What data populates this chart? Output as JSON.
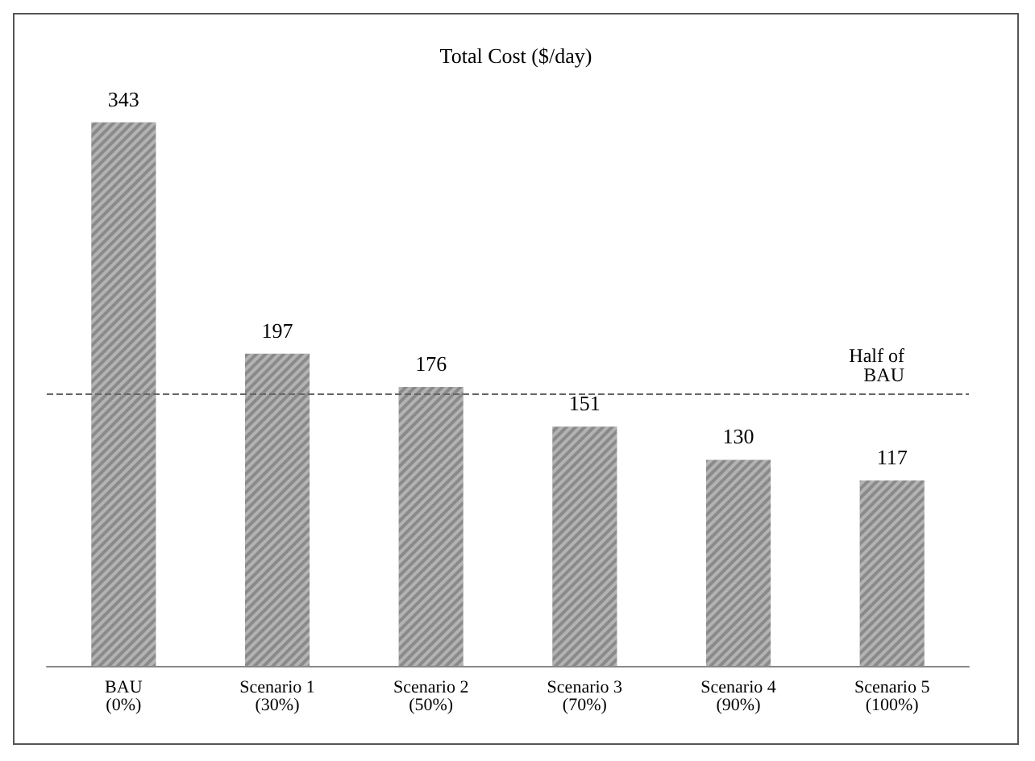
{
  "chart_data": {
    "type": "bar",
    "title": "Total Cost ($/day)",
    "categories": [
      "BAU (0%)",
      "Scenario 1 (30%)",
      "Scenario 2 (50%)",
      "Scenario 3 (70%)",
      "Scenario 4 (90%)",
      "Scenario 5 (100%)"
    ],
    "values": [
      343,
      197,
      176,
      151,
      130,
      117
    ],
    "color": "#8a8a8a",
    "data_labels": true,
    "ref_lines": [
      {
        "axis": "y",
        "value": 171.5,
        "label": "Half of BAU",
        "color": "#666666",
        "line_style": "dashed"
      }
    ]
  }
}
